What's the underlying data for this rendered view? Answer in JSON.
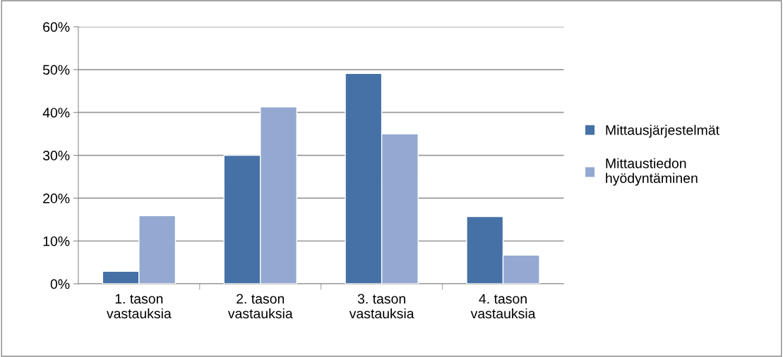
{
  "chart_data": {
    "type": "bar",
    "categories": [
      "1. tason\nvastauksia",
      "2. tason\nvastauksia",
      "3. tason\nvastauksia",
      "4. tason\nvastauksia"
    ],
    "series": [
      {
        "name": "Mittausjärjestelmät",
        "color": "#4571a6",
        "values": [
          2.9,
          30.0,
          49.1,
          15.7
        ]
      },
      {
        "name": "Mittaustiedon\nhyödyntäminen",
        "color": "#94a9d1",
        "values": [
          15.9,
          41.3,
          35.0,
          6.7
        ]
      }
    ],
    "ylim": [
      0,
      60
    ],
    "yticks": [
      {
        "value": 0,
        "label": "0%"
      },
      {
        "value": 10,
        "label": "10%"
      },
      {
        "value": 20,
        "label": "20%"
      },
      {
        "value": 30,
        "label": "30%"
      },
      {
        "value": 40,
        "label": "40%"
      },
      {
        "value": 50,
        "label": "50%"
      },
      {
        "value": 60,
        "label": "60%"
      }
    ],
    "grid": "y",
    "legend": "right"
  }
}
